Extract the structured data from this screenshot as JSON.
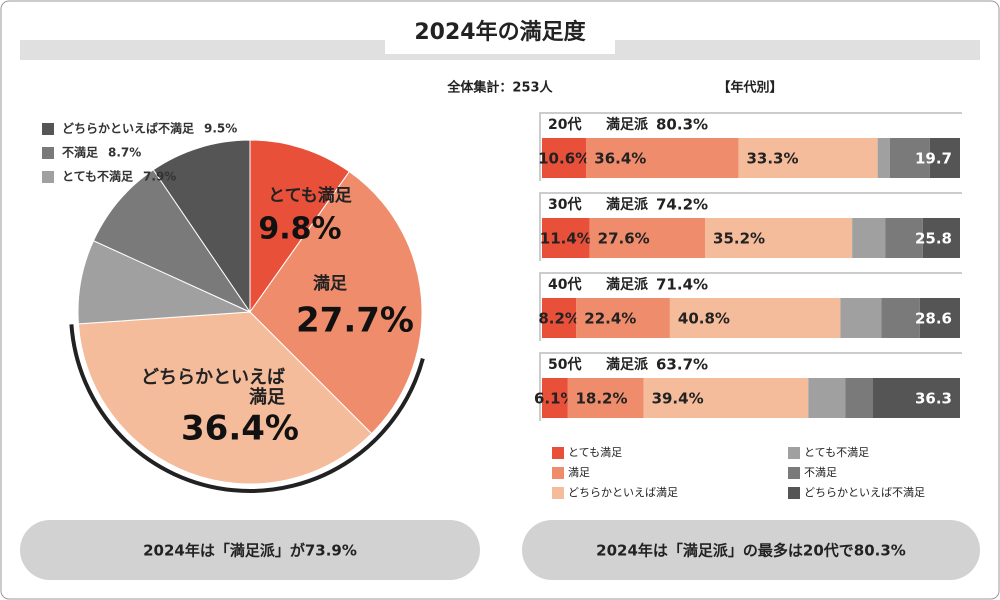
{
  "title": "2024年の満足度",
  "sample_note": "全体集計：253人",
  "notes": [
    "2024年は「満足派」が73.9%",
    "2024年は「満足派」の最多は20代で80.3%"
  ],
  "chart_data": [
    {
      "type": "pie",
      "categories": [
        "とても満足",
        "満足",
        "どちらかといえば満足",
        "とても不満足",
        "不満足",
        "どちらかといえば不満足"
      ],
      "values": [
        9.8,
        27.7,
        36.4,
        7.9,
        8.7,
        9.5
      ],
      "value_labels": [
        "9.8%",
        "27.7%",
        "36.4%",
        "7.9%",
        "8.7%",
        "9.5%"
      ],
      "colors": [
        "#e8503a",
        "#ef8c6c",
        "#f5bc9c",
        "#a0a0a0",
        "#7a7a7a",
        "#555555"
      ]
    },
    {
      "type": "bar",
      "orientation": "horizontal",
      "stacked": true,
      "title": "【年代別】",
      "categories": [
        "20代",
        "30代",
        "40代",
        "50代"
      ],
      "xlim": [
        0,
        100
      ],
      "satisfied_name": "満足派",
      "satisfied_totals": [
        80.3,
        74.2,
        71.4,
        63.7
      ],
      "satisfied_total_labels": [
        "80.3%",
        "74.2%",
        "71.4%",
        "63.7%"
      ],
      "dissatisfied_totals": [
        19.7,
        25.8,
        28.6,
        36.3
      ],
      "series": [
        {
          "name": "とても満足",
          "color": "#e8503a",
          "values": [
            10.6,
            11.4,
            8.2,
            6.1
          ],
          "value_labels": [
            "10.6%",
            "11.4%",
            "8.2%",
            "6.1%"
          ]
        },
        {
          "name": "満足",
          "color": "#ef8c6c",
          "values": [
            36.4,
            27.6,
            22.4,
            18.2
          ],
          "value_labels": [
            "36.4%",
            "27.6%",
            "22.4%",
            "18.2%"
          ]
        },
        {
          "name": "どちらかといえば満足",
          "color": "#f5bc9c",
          "values": [
            33.3,
            35.2,
            40.8,
            39.4
          ],
          "value_labels": [
            "33.3%",
            "35.2%",
            "40.8%",
            "39.4%"
          ]
        },
        {
          "name": "とても不満足",
          "color": "#a0a0a0",
          "values": [
            2.9,
            7.9,
            9.8,
            8.9
          ]
        },
        {
          "name": "不満足",
          "color": "#7a7a7a",
          "values": [
            9.6,
            9.0,
            9.2,
            6.5
          ]
        },
        {
          "name": "どちらかといえば不満足",
          "color": "#555555",
          "values": [
            7.2,
            8.9,
            9.6,
            20.9
          ]
        }
      ]
    }
  ]
}
